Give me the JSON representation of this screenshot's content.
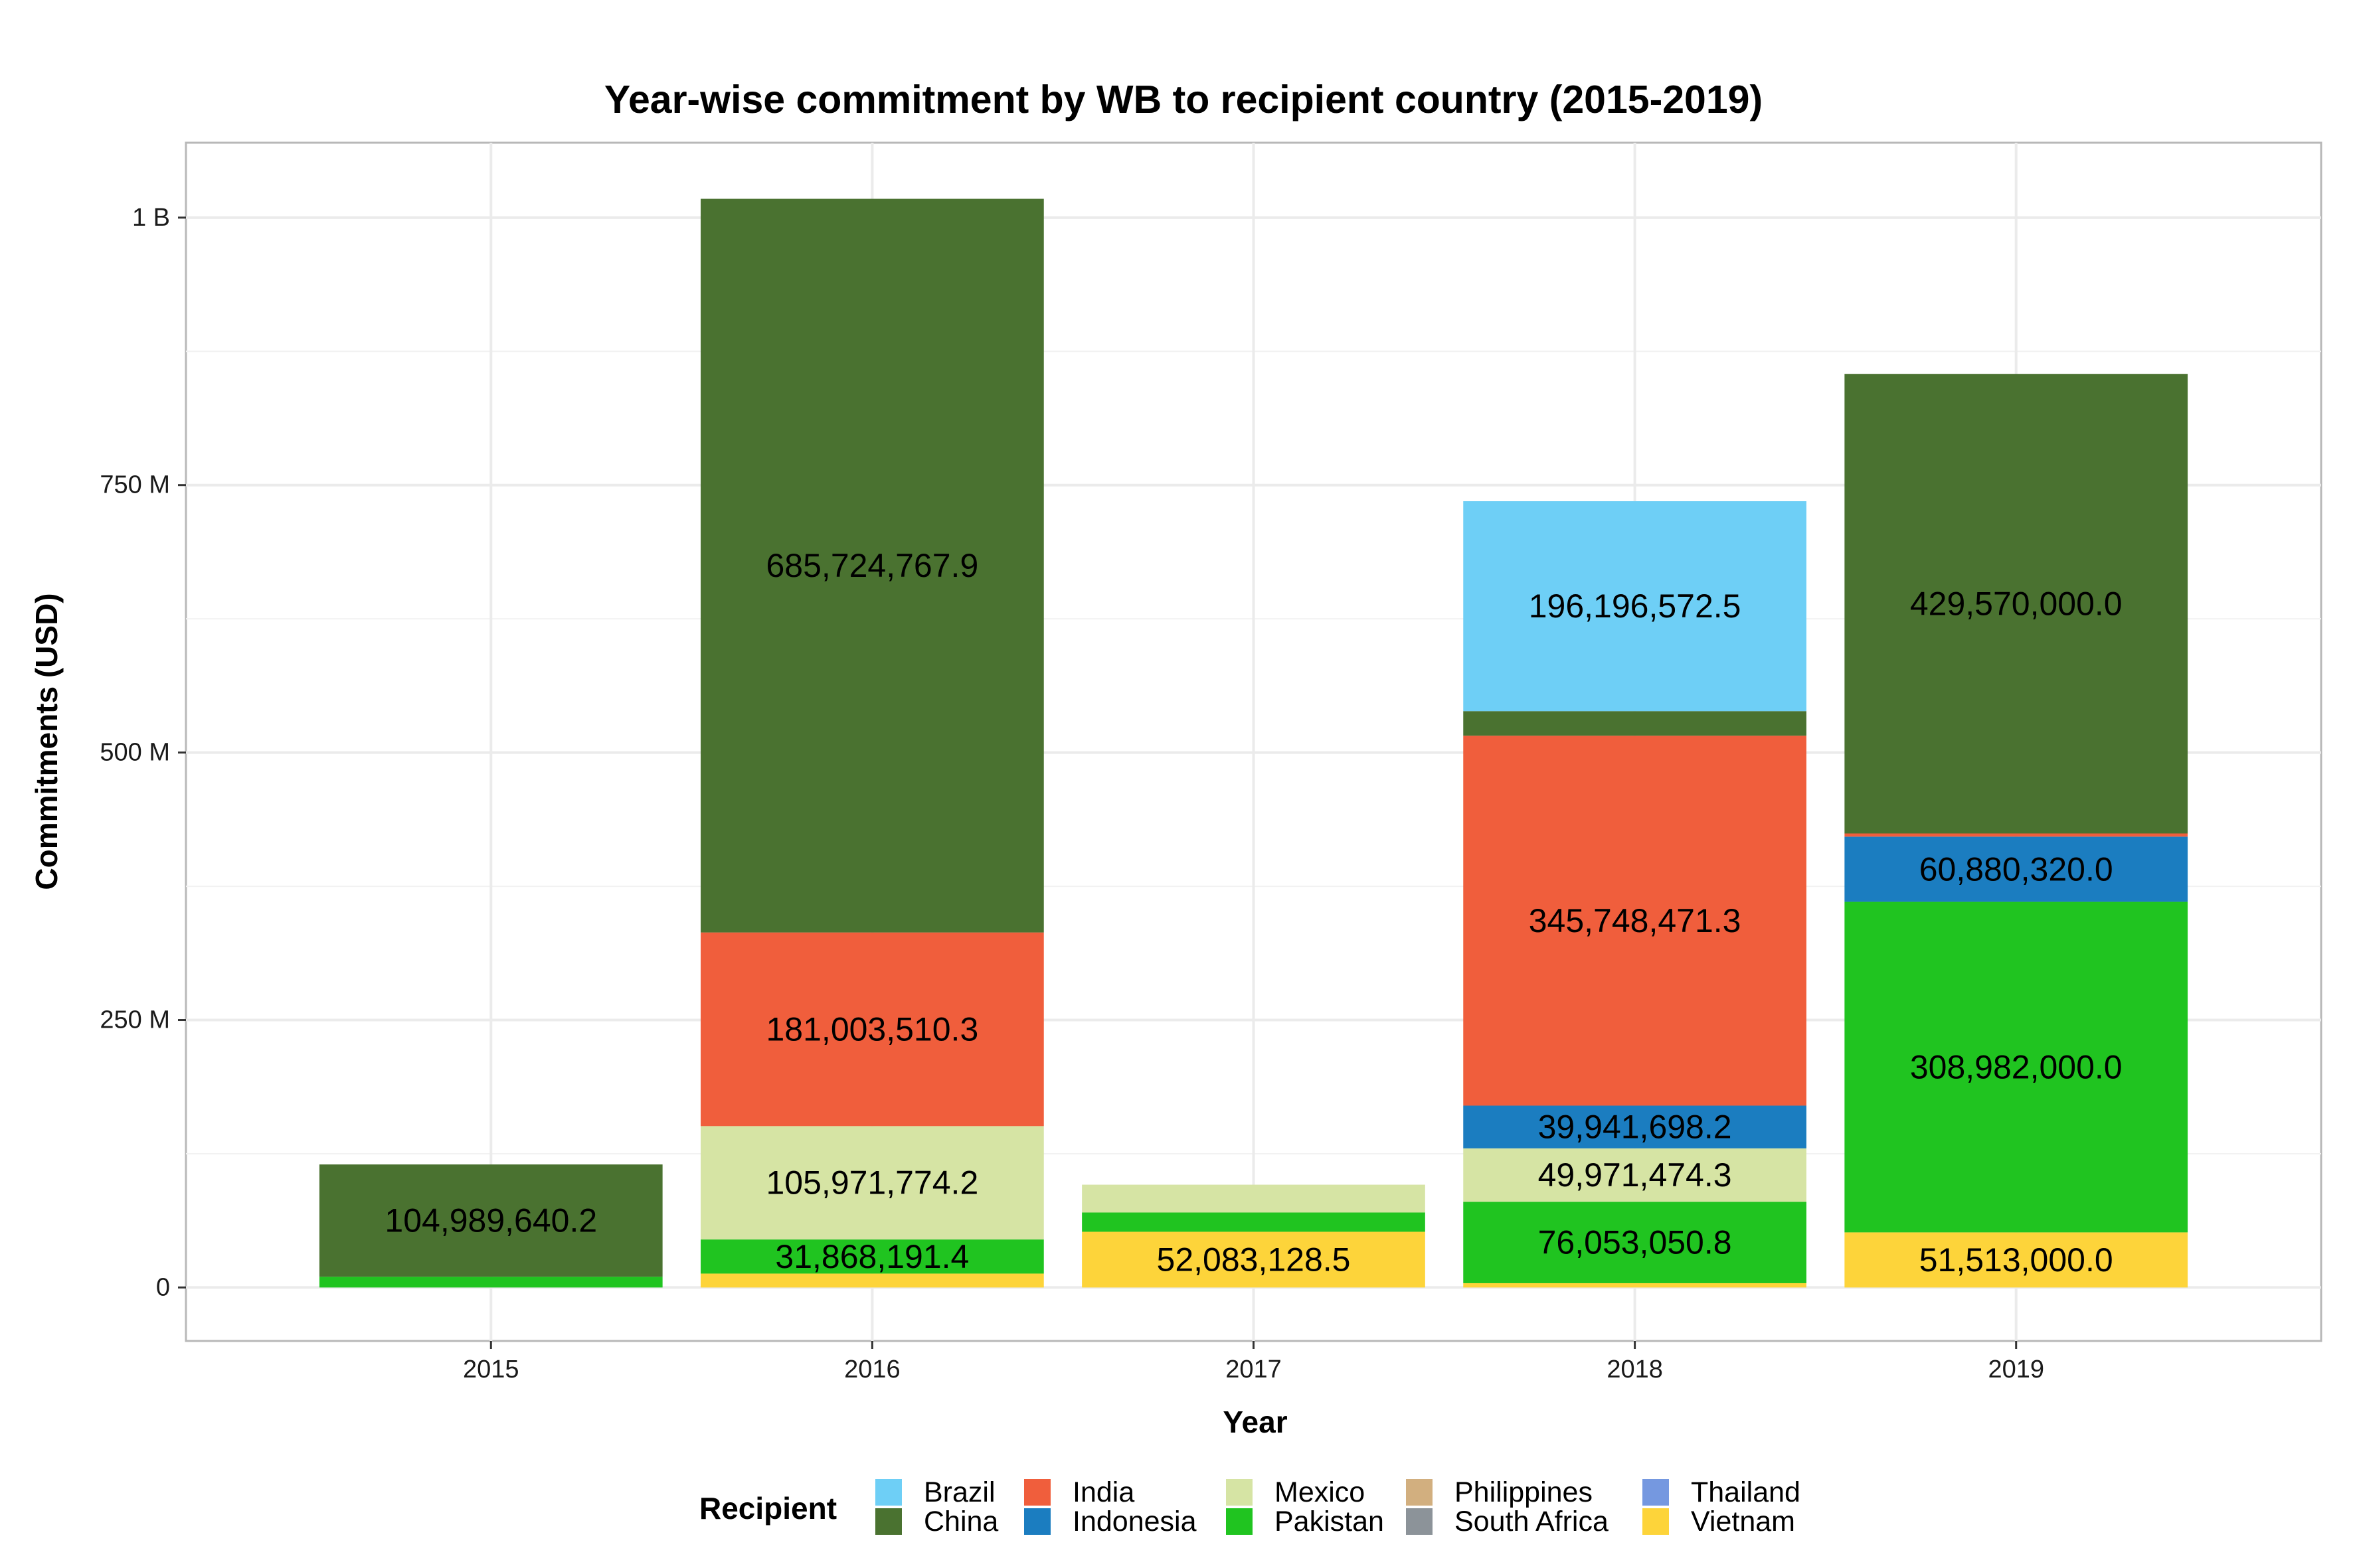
{
  "chart_data": {
    "type": "bar",
    "stacked": true,
    "title": "Year-wise commitment by WB to recipient country (2015-2019)",
    "xlabel": "Year",
    "ylabel": "Commitments (USD)",
    "categories": [
      "2015",
      "2016",
      "2017",
      "2018",
      "2019"
    ],
    "ylim": [
      -50000000,
      1070000000
    ],
    "yticks": [
      {
        "value": 0,
        "label": "0"
      },
      {
        "value": 250000000,
        "label": "250 M"
      },
      {
        "value": 500000000,
        "label": "500 M"
      },
      {
        "value": 750000000,
        "label": "750 M"
      },
      {
        "value": 1000000000,
        "label": "1 B"
      }
    ],
    "grid": true,
    "legend_title": "Recipient",
    "legend_position": "bottom",
    "legend_order": [
      "Brazil",
      "China",
      "India",
      "Indonesia",
      "Mexico",
      "Pakistan",
      "Philippines",
      "South Africa",
      "Thailand",
      "Vietnam"
    ],
    "stack_order": [
      "Vietnam",
      "Pakistan",
      "Mexico",
      "Indonesia",
      "India",
      "China",
      "Brazil"
    ],
    "series": [
      {
        "name": "Brazil",
        "color": "#6ECFF6",
        "values": [
          0,
          0,
          0,
          196196572.5,
          0
        ]
      },
      {
        "name": "China",
        "color": "#4A7230",
        "values": [
          104989640.2,
          685724767.9,
          0,
          23000000,
          429570000.0
        ]
      },
      {
        "name": "India",
        "color": "#F05E3C",
        "values": [
          0,
          181003510.3,
          0,
          345748471.3,
          3000000
        ]
      },
      {
        "name": "Indonesia",
        "color": "#1B7DC0",
        "values": [
          0,
          0,
          0,
          39941698.2,
          60880320.0
        ]
      },
      {
        "name": "Mexico",
        "color": "#D6E4A4",
        "values": [
          0,
          105971774.2,
          26000000,
          49971474.3,
          0
        ]
      },
      {
        "name": "Pakistan",
        "color": "#20C420",
        "values": [
          10000000,
          31868191.4,
          18000000,
          76053050.8,
          308982000.0
        ]
      },
      {
        "name": "Philippines",
        "color": "#D2AF7F",
        "values": [
          0,
          0,
          0,
          0,
          0
        ]
      },
      {
        "name": "South Africa",
        "color": "#8C9399",
        "values": [
          0,
          0,
          0,
          0,
          0
        ]
      },
      {
        "name": "Thailand",
        "color": "#7598E0",
        "values": [
          0,
          0,
          0,
          0,
          0
        ]
      },
      {
        "name": "Vietnam",
        "color": "#FDD43A",
        "values": [
          0,
          13000000,
          52083128.5,
          4000000,
          51513000.0
        ]
      }
    ],
    "data_labels": [
      {
        "category": "2015",
        "series": "China",
        "text": "104,989,640.2"
      },
      {
        "category": "2016",
        "series": "China",
        "text": "685,724,767.9"
      },
      {
        "category": "2016",
        "series": "India",
        "text": "181,003,510.3"
      },
      {
        "category": "2016",
        "series": "Mexico",
        "text": "105,971,774.2"
      },
      {
        "category": "2016",
        "series": "Pakistan",
        "text": "31,868,191.4"
      },
      {
        "category": "2017",
        "series": "Vietnam",
        "text": "52,083,128.5"
      },
      {
        "category": "2018",
        "series": "Brazil",
        "text": "196,196,572.5"
      },
      {
        "category": "2018",
        "series": "India",
        "text": "345,748,471.3"
      },
      {
        "category": "2018",
        "series": "Indonesia",
        "text": "39,941,698.2"
      },
      {
        "category": "2018",
        "series": "Mexico",
        "text": "49,971,474.3"
      },
      {
        "category": "2018",
        "series": "Pakistan",
        "text": "76,053,050.8"
      },
      {
        "category": "2019",
        "series": "China",
        "text": "429,570,000.0"
      },
      {
        "category": "2019",
        "series": "Indonesia",
        "text": "60,880,320.0"
      },
      {
        "category": "2019",
        "series": "Pakistan",
        "text": "308,982,000.0"
      },
      {
        "category": "2019",
        "series": "Vietnam",
        "text": "51,513,000.0"
      }
    ]
  }
}
